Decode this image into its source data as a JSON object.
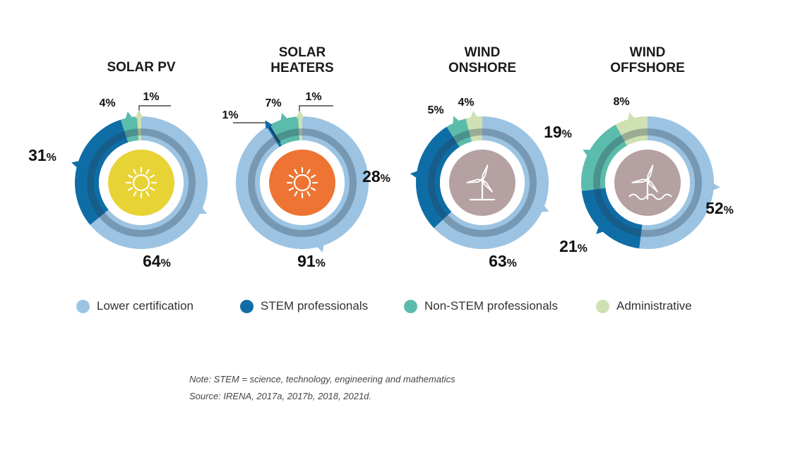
{
  "colors": {
    "lower_certification": "#9cc4e2",
    "stem": "#0f6da6",
    "non_stem": "#5cbcac",
    "administrative": "#cfe0b2",
    "solar_icon_pv": "#e8d334",
    "solar_icon_heaters": "#ed7433",
    "wind_icon": "#b5a1a1"
  },
  "legend": [
    {
      "label": "Lower certification",
      "color": "#9cc4e2"
    },
    {
      "label": "STEM professionals",
      "color": "#0f6da6"
    },
    {
      "label": "Non-STEM professionals",
      "color": "#5cbcac"
    },
    {
      "label": "Administrative",
      "color": "#cfe0b2"
    }
  ],
  "chart_data": [
    {
      "type": "pie",
      "title": [
        "SOLAR PV"
      ],
      "icon": "sun-icon",
      "categories": [
        "Lower certification",
        "STEM professionals",
        "Non-STEM professionals",
        "Administrative"
      ],
      "values": [
        64,
        31,
        4,
        1
      ],
      "labels": [
        "64",
        "31",
        "4%",
        "1%"
      ]
    },
    {
      "type": "pie",
      "title": [
        "SOLAR",
        "HEATERS"
      ],
      "icon": "sun-icon",
      "categories": [
        "Lower certification",
        "STEM professionals",
        "Non-STEM professionals",
        "Administrative"
      ],
      "values": [
        91,
        1,
        7,
        1
      ],
      "labels": [
        "91",
        "1%",
        "7%",
        "1%"
      ]
    },
    {
      "type": "pie",
      "title": [
        "WIND",
        "ONSHORE"
      ],
      "icon": "wind-turbine-icon",
      "categories": [
        "Lower certification",
        "STEM professionals",
        "Non-STEM professionals",
        "Administrative"
      ],
      "values": [
        63,
        28,
        5,
        4
      ],
      "labels": [
        "63",
        "28",
        "5%",
        "4%"
      ]
    },
    {
      "type": "pie",
      "title": [
        "WIND",
        "OFFSHORE"
      ],
      "icon": "offshore-wind-turbine-icon",
      "categories": [
        "Lower certification",
        "STEM professionals",
        "Non-STEM professionals",
        "Administrative"
      ],
      "values": [
        52,
        21,
        19,
        8
      ],
      "labels": [
        "52",
        "21",
        "19",
        "8%"
      ]
    }
  ],
  "pct_suffix": "%",
  "notes": {
    "note": "Note: STEM = science, technology, engineering and mathematics",
    "source": "Source: IRENA, 2017a, 2017b, 2018, 2021d."
  }
}
